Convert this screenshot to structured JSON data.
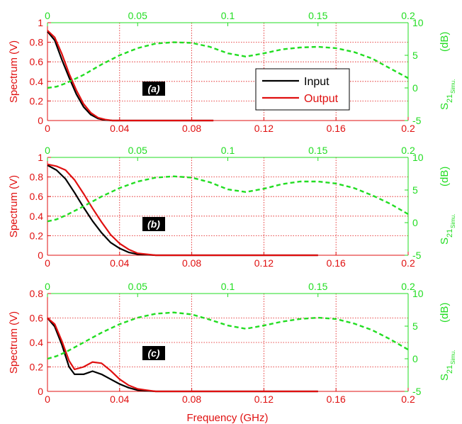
{
  "colors": {
    "input": "#000000",
    "output": "#e01010",
    "s21": "#22dd22",
    "grid": "#e01010",
    "axis_left": "#e01010",
    "axis_right": "#22dd22"
  },
  "legend": {
    "input_label": "Input",
    "output_label": "Output"
  },
  "xlabel": "Frequency (GHz)",
  "chart_data": [
    {
      "type": "line",
      "panel": "(a)",
      "ylabel": "Spectrum (V)",
      "y2label_main": "S",
      "y2label_sub1": "21",
      "y2label_sub2": "Simu.",
      "y2label_unit": "(dB)",
      "xlim": [
        0,
        0.2
      ],
      "ylim": [
        0,
        1
      ],
      "yticks": [
        0,
        0.2,
        0.4,
        0.6,
        0.8,
        1
      ],
      "ytick_labels": [
        "0",
        "0.2",
        "0.4",
        "0.6",
        "0.8",
        "1"
      ],
      "xticks": [
        0,
        0.04,
        0.08,
        0.12,
        0.16,
        0.2
      ],
      "xtick_labels": [
        "0",
        "0.04",
        "0.08",
        "0.12",
        "0.16",
        "0.2"
      ],
      "x2lim": [
        0,
        0.2
      ],
      "x2ticks": [
        0,
        0.05,
        0.1,
        0.15,
        0.2
      ],
      "x2tick_labels": [
        "0",
        "0.05",
        "0.1",
        "0.15",
        "0.2"
      ],
      "y2lim": [
        -5,
        10
      ],
      "y2ticks": [
        -5,
        0,
        5,
        10
      ],
      "y2tick_labels": [
        "-5",
        "0",
        "5",
        "10"
      ],
      "legend": true,
      "series": [
        {
          "name": "Input",
          "axis": "left",
          "style": "solid",
          "x": [
            0,
            0.004,
            0.008,
            0.012,
            0.016,
            0.02,
            0.024,
            0.028,
            0.032,
            0.036,
            0.04,
            0.06,
            0.092
          ],
          "y": [
            0.91,
            0.82,
            0.62,
            0.44,
            0.27,
            0.14,
            0.06,
            0.02,
            0.005,
            0.0,
            0.0,
            0.0,
            0.0
          ]
        },
        {
          "name": "Output",
          "axis": "left",
          "style": "solid",
          "x": [
            0,
            0.004,
            0.008,
            0.012,
            0.016,
            0.02,
            0.024,
            0.028,
            0.032,
            0.036,
            0.04,
            0.06,
            0.092
          ],
          "y": [
            0.92,
            0.85,
            0.68,
            0.48,
            0.31,
            0.17,
            0.08,
            0.03,
            0.01,
            0.0,
            0.0,
            0.0,
            0.0
          ]
        },
        {
          "name": "",
          "axis": "right",
          "style": "dashed",
          "x": [
            0,
            0.005,
            0.01,
            0.02,
            0.03,
            0.04,
            0.05,
            0.06,
            0.07,
            0.08,
            0.09,
            0.1,
            0.11,
            0.12,
            0.13,
            0.14,
            0.15,
            0.16,
            0.17,
            0.18,
            0.19,
            0.2
          ],
          "y": [
            0.0,
            0.2,
            0.7,
            2.0,
            3.6,
            5.0,
            6.1,
            6.8,
            7.0,
            6.9,
            6.3,
            5.3,
            4.8,
            5.3,
            5.9,
            6.2,
            6.3,
            6.1,
            5.5,
            4.5,
            3.0,
            1.5
          ]
        }
      ]
    },
    {
      "type": "line",
      "panel": "(b)",
      "ylabel": "Spectrum (V)",
      "y2label_main": "S",
      "y2label_sub1": "21",
      "y2label_sub2": "Simu.",
      "y2label_unit": "(dB)",
      "xlim": [
        0,
        0.2
      ],
      "ylim": [
        0,
        1
      ],
      "yticks": [
        0,
        0.2,
        0.4,
        0.6,
        0.8,
        1
      ],
      "ytick_labels": [
        "0",
        "0.2",
        "0.4",
        "0.6",
        "0.8",
        "1"
      ],
      "xticks": [
        0,
        0.04,
        0.08,
        0.12,
        0.16,
        0.2
      ],
      "xtick_labels": [
        "0",
        "0.04",
        "0.08",
        "0.12",
        "0.16",
        "0.2"
      ],
      "x2lim": [
        0,
        0.2
      ],
      "x2ticks": [
        0,
        0.05,
        0.1,
        0.15,
        0.2
      ],
      "x2tick_labels": [
        "0",
        "0.05",
        "0.1",
        "0.15",
        "0.2"
      ],
      "y2lim": [
        -5,
        10
      ],
      "y2ticks": [
        -5,
        0,
        5,
        10
      ],
      "y2tick_labels": [
        "-5",
        "0",
        "5",
        "10"
      ],
      "legend": false,
      "series": [
        {
          "name": "Input",
          "axis": "left",
          "style": "solid",
          "x": [
            0,
            0.005,
            0.01,
            0.015,
            0.02,
            0.025,
            0.03,
            0.035,
            0.04,
            0.045,
            0.05,
            0.055,
            0.06,
            0.08,
            0.15
          ],
          "y": [
            0.92,
            0.87,
            0.78,
            0.64,
            0.49,
            0.35,
            0.23,
            0.13,
            0.07,
            0.03,
            0.01,
            0.005,
            0.0,
            0.0,
            0.0
          ]
        },
        {
          "name": "Output",
          "axis": "left",
          "style": "solid",
          "x": [
            0,
            0.005,
            0.01,
            0.015,
            0.02,
            0.025,
            0.03,
            0.035,
            0.04,
            0.045,
            0.05,
            0.055,
            0.06,
            0.08,
            0.15
          ],
          "y": [
            0.93,
            0.91,
            0.87,
            0.77,
            0.63,
            0.48,
            0.34,
            0.21,
            0.12,
            0.06,
            0.02,
            0.01,
            0.0,
            0.0,
            0.0
          ]
        },
        {
          "name": "",
          "axis": "right",
          "style": "dashed",
          "x": [
            0,
            0.005,
            0.01,
            0.02,
            0.03,
            0.04,
            0.05,
            0.06,
            0.07,
            0.08,
            0.09,
            0.1,
            0.11,
            0.12,
            0.13,
            0.14,
            0.15,
            0.16,
            0.17,
            0.18,
            0.19,
            0.2
          ],
          "y": [
            0.2,
            0.5,
            1.1,
            2.5,
            4.0,
            5.3,
            6.3,
            6.9,
            7.1,
            6.9,
            6.2,
            5.1,
            4.7,
            5.2,
            5.9,
            6.3,
            6.3,
            6.0,
            5.3,
            4.2,
            2.9,
            1.3
          ]
        }
      ]
    },
    {
      "type": "line",
      "panel": "(c)",
      "ylabel": "Spectrum (V)",
      "y2label_main": "S",
      "y2label_sub1": "21",
      "y2label_sub2": "Simu.",
      "y2label_unit": "(dB)",
      "xlim": [
        0,
        0.2
      ],
      "ylim": [
        0,
        0.8
      ],
      "yticks": [
        0,
        0.2,
        0.4,
        0.6,
        0.8
      ],
      "ytick_labels": [
        "0",
        "0.2",
        "0.4",
        "0.6",
        "0.8"
      ],
      "xticks": [
        0,
        0.04,
        0.08,
        0.12,
        0.16,
        0.2
      ],
      "xtick_labels": [
        "0",
        "0.04",
        "0.08",
        "0.12",
        "0.16",
        "0.2"
      ],
      "x2lim": [
        0,
        0.2
      ],
      "x2ticks": [
        0,
        0.05,
        0.1,
        0.15,
        0.2
      ],
      "x2tick_labels": [
        "0",
        "0.05",
        "0.1",
        "0.15",
        "0.2"
      ],
      "y2lim": [
        -5,
        10
      ],
      "y2ticks": [
        -5,
        0,
        5,
        10
      ],
      "y2tick_labels": [
        "-5",
        "0",
        "5",
        "10"
      ],
      "legend": false,
      "series": [
        {
          "name": "Input",
          "axis": "left",
          "style": "solid",
          "x": [
            0,
            0.004,
            0.008,
            0.012,
            0.015,
            0.02,
            0.025,
            0.03,
            0.035,
            0.04,
            0.045,
            0.05,
            0.055,
            0.06,
            0.1,
            0.15
          ],
          "y": [
            0.6,
            0.53,
            0.38,
            0.2,
            0.14,
            0.14,
            0.165,
            0.14,
            0.1,
            0.06,
            0.03,
            0.01,
            0.005,
            0.0,
            0.0,
            0.0
          ]
        },
        {
          "name": "Output",
          "axis": "left",
          "style": "solid",
          "x": [
            0,
            0.004,
            0.008,
            0.012,
            0.015,
            0.02,
            0.025,
            0.03,
            0.035,
            0.04,
            0.045,
            0.05,
            0.055,
            0.06,
            0.1,
            0.15
          ],
          "y": [
            0.6,
            0.55,
            0.41,
            0.25,
            0.18,
            0.2,
            0.24,
            0.23,
            0.17,
            0.1,
            0.05,
            0.02,
            0.01,
            0.0,
            0.0,
            0.0
          ]
        },
        {
          "name": "",
          "axis": "right",
          "style": "dashed",
          "x": [
            0,
            0.005,
            0.01,
            0.02,
            0.03,
            0.04,
            0.05,
            0.06,
            0.07,
            0.08,
            0.09,
            0.1,
            0.11,
            0.12,
            0.13,
            0.14,
            0.15,
            0.16,
            0.17,
            0.18,
            0.19,
            0.2
          ],
          "y": [
            0.0,
            0.4,
            1.0,
            2.5,
            4.0,
            5.3,
            6.3,
            6.9,
            7.1,
            6.8,
            6.0,
            5.1,
            4.6,
            5.1,
            5.7,
            6.1,
            6.3,
            6.1,
            5.4,
            4.4,
            3.0,
            1.4
          ]
        }
      ]
    }
  ]
}
